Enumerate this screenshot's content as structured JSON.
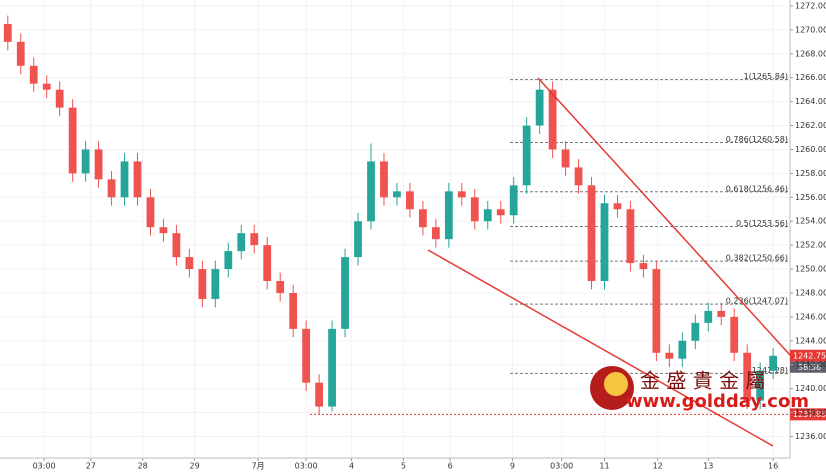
{
  "chart_data": {
    "type": "candlestick",
    "up_color": "#26a69a",
    "down_color": "#ef5350",
    "grid": true,
    "open": [
      1270.5,
      1269,
      1267,
      1265.5,
      1265,
      1263.5,
      1258,
      1260,
      1257.5,
      1256,
      1259,
      1256,
      1253.5,
      1253,
      1251,
      1250,
      1247.5,
      1250,
      1251.5,
      1253,
      1252,
      1249,
      1248,
      1245,
      1240.5,
      1238.5,
      1245,
      1251,
      1254,
      1259,
      1256,
      1256.5,
      1255,
      1253.5,
      1252.5,
      1256.5,
      1256,
      1254,
      1255,
      1254.5,
      1257,
      1262,
      1265,
      1260,
      1258.5,
      1257,
      1249,
      1255.5,
      1255,
      1250.5,
      1250,
      1243,
      1242.5,
      1244,
      1245.5,
      1246.5,
      1246,
      1243,
      1239,
      1241.5
    ],
    "high": [
      1271.2,
      1269.7,
      1267.7,
      1266.2,
      1265.7,
      1264.2,
      1260.7,
      1260.7,
      1258.2,
      1259.7,
      1259.7,
      1256.7,
      1254.2,
      1253.7,
      1251.7,
      1250.7,
      1250.7,
      1252.2,
      1253.7,
      1253.7,
      1252.7,
      1249.7,
      1248.7,
      1245.7,
      1241.2,
      1245.7,
      1251.7,
      1254.7,
      1260.5,
      1259.7,
      1257.2,
      1257.2,
      1255.7,
      1254.2,
      1257.2,
      1257.2,
      1256.7,
      1255.7,
      1255.7,
      1257.7,
      1262.7,
      1265.84,
      1265.7,
      1260.7,
      1259.2,
      1257.7,
      1256.2,
      1256.2,
      1255.7,
      1251.2,
      1250.7,
      1243.7,
      1244.7,
      1246.2,
      1247.2,
      1247.2,
      1246.7,
      1243.7,
      1242.2,
      1243.4
    ],
    "low": [
      1268.3,
      1266.3,
      1264.8,
      1264.3,
      1262.8,
      1257.3,
      1257.3,
      1256.8,
      1255.3,
      1255.3,
      1255.3,
      1252.8,
      1252.3,
      1250.3,
      1249.3,
      1246.8,
      1246.8,
      1249.3,
      1250.8,
      1251.3,
      1248.3,
      1247.3,
      1244.3,
      1239.8,
      1237.85,
      1238.1,
      1244.3,
      1250.3,
      1253.3,
      1255.3,
      1255.3,
      1254.3,
      1252.8,
      1251.8,
      1251.8,
      1255.3,
      1253.3,
      1253.3,
      1253.8,
      1253.8,
      1256.3,
      1261.3,
      1259.3,
      1257.8,
      1256.3,
      1248.3,
      1248.3,
      1254.3,
      1249.8,
      1249.3,
      1242.3,
      1241.8,
      1241.8,
      1243.3,
      1244.8,
      1245.3,
      1242.3,
      1238.3,
      1238.3,
      1240.8
    ],
    "close": [
      1269,
      1267,
      1265.5,
      1265,
      1263.5,
      1258,
      1260,
      1257.5,
      1256,
      1259,
      1256,
      1253.5,
      1253,
      1251,
      1250,
      1247.5,
      1250,
      1251.5,
      1253,
      1252,
      1249,
      1248,
      1245,
      1240.5,
      1238.5,
      1245,
      1251,
      1254,
      1259,
      1256,
      1256.5,
      1255,
      1253.5,
      1252.5,
      1256.5,
      1256,
      1254,
      1255,
      1254.5,
      1257,
      1262,
      1265,
      1260,
      1258.5,
      1257,
      1249,
      1255.5,
      1255,
      1250.5,
      1250,
      1243,
      1242.5,
      1244,
      1245.5,
      1246.5,
      1246,
      1243,
      1239,
      1241.5,
      1242.75
    ],
    "xlim": [
      -0.6,
      60.3
    ],
    "xticks": [
      {
        "value": 2.8,
        "label": "03:00"
      },
      {
        "value": 6.4,
        "label": "27"
      },
      {
        "value": 10.4,
        "label": "28"
      },
      {
        "value": 14.4,
        "label": "29"
      },
      {
        "value": 19.3,
        "label": "7月"
      },
      {
        "value": 23.0,
        "label": "03:00"
      },
      {
        "value": 26.5,
        "label": "4"
      },
      {
        "value": 30.5,
        "label": "5"
      },
      {
        "value": 34.1,
        "label": "6"
      },
      {
        "value": 38.9,
        "label": "9"
      },
      {
        "value": 42.7,
        "label": "03:00"
      },
      {
        "value": 46.0,
        "label": "11"
      },
      {
        "value": 50.1,
        "label": "12"
      },
      {
        "value": 54.0,
        "label": "13"
      },
      {
        "value": 59.0,
        "label": "16"
      }
    ],
    "ylim": [
      1234.2,
      1272.5
    ],
    "yticks": [
      {
        "value": 1236,
        "label": "1236.00"
      },
      {
        "value": 1238,
        "label": "1238.00"
      },
      {
        "value": 1240,
        "label": "1240.00"
      },
      {
        "value": 1242,
        "label": "1242.00"
      },
      {
        "value": 1244,
        "label": "1244.00"
      },
      {
        "value": 1246,
        "label": "1246.00"
      },
      {
        "value": 1248,
        "label": "1248.00"
      },
      {
        "value": 1250,
        "label": "1250.00"
      },
      {
        "value": 1252,
        "label": "1252.00"
      },
      {
        "value": 1254,
        "label": "1254.00"
      },
      {
        "value": 1256,
        "label": "1256.00"
      },
      {
        "value": 1258,
        "label": "1258.00"
      },
      {
        "value": 1260,
        "label": "1260.00"
      },
      {
        "value": 1262,
        "label": "1262.00"
      },
      {
        "value": 1264,
        "label": "1264.00"
      },
      {
        "value": 1266,
        "label": "1266.00"
      },
      {
        "value": 1268,
        "label": "1268.00"
      },
      {
        "value": 1270,
        "label": "1270.00"
      },
      {
        "value": 1272,
        "label": "1272.00"
      }
    ],
    "fibonacci": [
      {
        "value": 1265.84,
        "label": "1(1265.84)"
      },
      {
        "value": 1260.58,
        "label": "0.786(1260.58)"
      },
      {
        "value": 1256.46,
        "label": "0.618(1256.46)"
      },
      {
        "value": 1253.56,
        "label": "0.5(1253.56)"
      },
      {
        "value": 1250.66,
        "label": "0.382(1250.66)"
      },
      {
        "value": 1247.07,
        "label": "0.236(1247.07)"
      },
      {
        "value": 1241.28,
        "label": "0(1241.28)"
      }
    ],
    "support_price": 1237.85,
    "last_price": 1242.75,
    "countdown": "38:56",
    "watermark": {
      "name": "金 盛 貴 金 屬",
      "url": "www.goldday.com"
    }
  }
}
